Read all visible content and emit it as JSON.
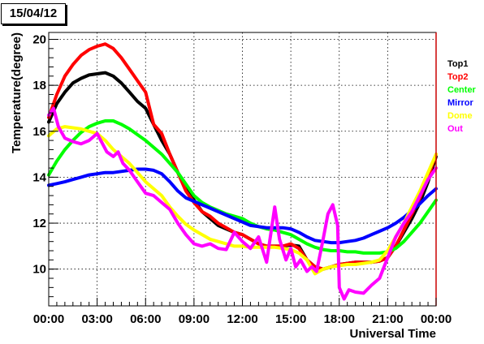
{
  "chart_data": {
    "type": "line",
    "title": "15/04/12",
    "xlabel": "Universal Time",
    "ylabel": "Temperature(degree)",
    "xlim": [
      0,
      24
    ],
    "ylim": [
      8.4,
      20.3
    ],
    "x_ticks": [
      "00:00",
      "03:00",
      "06:00",
      "09:00",
      "12:00",
      "15:00",
      "18:00",
      "21:00",
      "00:00"
    ],
    "y_ticks": [
      10,
      12,
      14,
      16,
      18,
      20
    ],
    "grid": true,
    "legend_position": "right",
    "series": [
      {
        "name": "Top1",
        "color": "#000000",
        "points": [
          [
            0,
            16.4
          ],
          [
            0.5,
            17.2
          ],
          [
            1,
            17.7
          ],
          [
            1.5,
            18.1
          ],
          [
            2,
            18.3
          ],
          [
            2.5,
            18.45
          ],
          [
            3,
            18.5
          ],
          [
            3.5,
            18.55
          ],
          [
            4,
            18.4
          ],
          [
            4.5,
            18.1
          ],
          [
            5,
            17.7
          ],
          [
            5.5,
            17.3
          ],
          [
            6,
            17.0
          ],
          [
            6.5,
            16.3
          ],
          [
            7,
            15.6
          ],
          [
            7.5,
            15.0
          ],
          [
            8,
            14.2
          ],
          [
            8.5,
            13.5
          ],
          [
            9,
            13.0
          ],
          [
            9.5,
            12.5
          ],
          [
            10,
            12.2
          ],
          [
            10.5,
            11.9
          ],
          [
            11,
            11.75
          ],
          [
            11.5,
            11.6
          ],
          [
            12,
            11.5
          ],
          [
            12.5,
            11.3
          ],
          [
            13,
            11.1
          ],
          [
            13.5,
            11.0
          ],
          [
            14,
            11.0
          ],
          [
            14.5,
            11.0
          ],
          [
            15,
            11.05
          ],
          [
            15.5,
            11.0
          ],
          [
            16,
            10.4
          ],
          [
            16.5,
            10.1
          ],
          [
            17,
            10.0
          ],
          [
            17.5,
            10.1
          ],
          [
            18,
            10.2
          ],
          [
            18.5,
            10.25
          ],
          [
            19,
            10.3
          ],
          [
            19.5,
            10.3
          ],
          [
            20,
            10.3
          ],
          [
            20.5,
            10.35
          ],
          [
            21,
            10.5
          ],
          [
            21.5,
            11.0
          ],
          [
            22,
            11.6
          ],
          [
            22.5,
            12.2
          ],
          [
            23,
            12.9
          ],
          [
            23.5,
            13.8
          ],
          [
            24,
            14.9
          ]
        ]
      },
      {
        "name": "Top2",
        "color": "#ff0000",
        "points": [
          [
            0,
            16.6
          ],
          [
            0.5,
            17.6
          ],
          [
            1,
            18.4
          ],
          [
            1.5,
            18.9
          ],
          [
            2,
            19.3
          ],
          [
            2.5,
            19.55
          ],
          [
            3,
            19.7
          ],
          [
            3.5,
            19.8
          ],
          [
            4,
            19.6
          ],
          [
            4.5,
            19.2
          ],
          [
            5,
            18.7
          ],
          [
            5.5,
            18.2
          ],
          [
            6,
            17.7
          ],
          [
            6.5,
            16.3
          ],
          [
            7,
            15.9
          ],
          [
            7.5,
            15.0
          ],
          [
            8,
            14.2
          ],
          [
            8.5,
            13.4
          ],
          [
            9,
            12.9
          ],
          [
            9.5,
            12.5
          ],
          [
            10,
            12.3
          ],
          [
            10.5,
            12.0
          ],
          [
            11,
            11.8
          ],
          [
            11.5,
            11.6
          ],
          [
            12,
            11.5
          ],
          [
            12.5,
            11.3
          ],
          [
            13,
            11.1
          ],
          [
            13.5,
            11.0
          ],
          [
            14,
            11.0
          ],
          [
            14.5,
            11.0
          ],
          [
            15,
            11.1
          ],
          [
            15.5,
            10.9
          ],
          [
            16,
            10.4
          ],
          [
            16.5,
            10.1
          ],
          [
            17,
            10.0
          ],
          [
            17.5,
            10.1
          ],
          [
            18,
            10.2
          ],
          [
            18.5,
            10.25
          ],
          [
            19,
            10.3
          ],
          [
            19.5,
            10.3
          ],
          [
            20,
            10.3
          ],
          [
            20.5,
            10.35
          ],
          [
            21,
            10.5
          ],
          [
            21.5,
            11.0
          ],
          [
            22,
            11.7
          ],
          [
            22.5,
            12.4
          ],
          [
            23,
            13.1
          ],
          [
            23.5,
            14.0
          ],
          [
            24,
            15.0
          ]
        ]
      },
      {
        "name": "Center",
        "color": "#00ff00",
        "points": [
          [
            0,
            14.1
          ],
          [
            0.5,
            14.7
          ],
          [
            1,
            15.2
          ],
          [
            1.5,
            15.6
          ],
          [
            2,
            15.95
          ],
          [
            2.5,
            16.2
          ],
          [
            3,
            16.35
          ],
          [
            3.5,
            16.45
          ],
          [
            4,
            16.45
          ],
          [
            4.5,
            16.3
          ],
          [
            5,
            16.1
          ],
          [
            5.5,
            15.85
          ],
          [
            6,
            15.6
          ],
          [
            6.5,
            15.3
          ],
          [
            7,
            15.0
          ],
          [
            7.5,
            14.6
          ],
          [
            8,
            14.2
          ],
          [
            8.5,
            13.7
          ],
          [
            9,
            13.2
          ],
          [
            9.5,
            12.9
          ],
          [
            10,
            12.7
          ],
          [
            10.5,
            12.55
          ],
          [
            11,
            12.4
          ],
          [
            11.5,
            12.3
          ],
          [
            12,
            12.2
          ],
          [
            12.5,
            12.0
          ],
          [
            13,
            11.85
          ],
          [
            13.5,
            11.75
          ],
          [
            14,
            11.7
          ],
          [
            14.5,
            11.6
          ],
          [
            15,
            11.5
          ],
          [
            15.5,
            11.3
          ],
          [
            16,
            11.1
          ],
          [
            16.5,
            10.95
          ],
          [
            17,
            10.85
          ],
          [
            17.5,
            10.8
          ],
          [
            18,
            10.8
          ],
          [
            18.5,
            10.75
          ],
          [
            19,
            10.75
          ],
          [
            19.5,
            10.7
          ],
          [
            20,
            10.7
          ],
          [
            20.5,
            10.7
          ],
          [
            21,
            10.75
          ],
          [
            21.5,
            10.9
          ],
          [
            22,
            11.2
          ],
          [
            22.5,
            11.6
          ],
          [
            23,
            12.0
          ],
          [
            23.5,
            12.5
          ],
          [
            24,
            13.0
          ]
        ]
      },
      {
        "name": "Mirror",
        "color": "#0000ff",
        "points": [
          [
            0,
            13.65
          ],
          [
            0.5,
            13.72
          ],
          [
            1,
            13.8
          ],
          [
            1.5,
            13.9
          ],
          [
            2,
            14.0
          ],
          [
            2.5,
            14.1
          ],
          [
            3,
            14.15
          ],
          [
            3.5,
            14.2
          ],
          [
            4,
            14.2
          ],
          [
            4.5,
            14.25
          ],
          [
            5,
            14.3
          ],
          [
            5.5,
            14.35
          ],
          [
            6,
            14.35
          ],
          [
            6.5,
            14.3
          ],
          [
            7,
            14.15
          ],
          [
            7.5,
            13.8
          ],
          [
            8,
            13.4
          ],
          [
            8.5,
            13.1
          ],
          [
            9,
            12.95
          ],
          [
            9.5,
            12.8
          ],
          [
            10,
            12.65
          ],
          [
            10.5,
            12.5
          ],
          [
            11,
            12.35
          ],
          [
            11.5,
            12.2
          ],
          [
            12,
            12.05
          ],
          [
            12.5,
            11.9
          ],
          [
            13,
            11.85
          ],
          [
            13.5,
            11.8
          ],
          [
            14,
            11.8
          ],
          [
            14.5,
            11.8
          ],
          [
            15,
            11.75
          ],
          [
            15.5,
            11.6
          ],
          [
            16,
            11.4
          ],
          [
            16.5,
            11.25
          ],
          [
            17,
            11.2
          ],
          [
            17.5,
            11.15
          ],
          [
            18,
            11.15
          ],
          [
            18.5,
            11.2
          ],
          [
            19,
            11.25
          ],
          [
            19.5,
            11.35
          ],
          [
            20,
            11.5
          ],
          [
            20.5,
            11.65
          ],
          [
            21,
            11.8
          ],
          [
            21.5,
            12.0
          ],
          [
            22,
            12.25
          ],
          [
            22.5,
            12.55
          ],
          [
            23,
            12.85
          ],
          [
            23.5,
            13.2
          ],
          [
            24,
            13.5
          ]
        ]
      },
      {
        "name": "Dome",
        "color": "#ffff00",
        "points": [
          [
            0,
            15.8
          ],
          [
            0.5,
            16.1
          ],
          [
            1,
            16.2
          ],
          [
            1.5,
            16.15
          ],
          [
            2,
            16.1
          ],
          [
            2.5,
            16.0
          ],
          [
            3,
            15.9
          ],
          [
            3.5,
            15.6
          ],
          [
            4,
            15.2
          ],
          [
            4.5,
            14.9
          ],
          [
            5,
            14.6
          ],
          [
            5.5,
            14.2
          ],
          [
            6,
            13.8
          ],
          [
            6.5,
            13.5
          ],
          [
            7,
            13.2
          ],
          [
            7.5,
            12.7
          ],
          [
            8,
            12.3
          ],
          [
            8.5,
            11.95
          ],
          [
            9,
            11.7
          ],
          [
            9.5,
            11.5
          ],
          [
            10,
            11.3
          ],
          [
            10.5,
            11.2
          ],
          [
            11,
            11.1
          ],
          [
            11.5,
            11.0
          ],
          [
            12,
            11.0
          ],
          [
            12.5,
            10.95
          ],
          [
            13,
            10.95
          ],
          [
            13.5,
            10.95
          ],
          [
            14,
            10.95
          ],
          [
            14.5,
            10.9
          ],
          [
            15,
            10.85
          ],
          [
            15.5,
            10.7
          ],
          [
            16,
            10.4
          ],
          [
            16.5,
            9.8
          ],
          [
            17,
            10.0
          ],
          [
            17.5,
            10.1
          ],
          [
            18,
            10.15
          ],
          [
            18.5,
            10.2
          ],
          [
            19,
            10.2
          ],
          [
            19.5,
            10.25
          ],
          [
            20,
            10.3
          ],
          [
            20.5,
            10.4
          ],
          [
            21,
            10.8
          ],
          [
            21.5,
            11.4
          ],
          [
            22,
            12.0
          ],
          [
            22.5,
            12.7
          ],
          [
            23,
            13.4
          ],
          [
            23.5,
            14.2
          ],
          [
            24,
            15.0
          ]
        ]
      },
      {
        "name": "Out",
        "color": "#ff00ff",
        "points": [
          [
            0,
            16.7
          ],
          [
            0.3,
            17.0
          ],
          [
            0.6,
            16.2
          ],
          [
            1,
            15.7
          ],
          [
            1.5,
            15.55
          ],
          [
            2,
            15.45
          ],
          [
            2.5,
            15.6
          ],
          [
            3,
            15.9
          ],
          [
            3.3,
            15.5
          ],
          [
            3.6,
            15.1
          ],
          [
            4,
            14.9
          ],
          [
            4.3,
            15.1
          ],
          [
            4.6,
            14.6
          ],
          [
            5,
            14.3
          ],
          [
            5.5,
            13.8
          ],
          [
            6,
            13.3
          ],
          [
            6.5,
            13.2
          ],
          [
            7,
            12.9
          ],
          [
            7.5,
            12.6
          ],
          [
            8,
            12.0
          ],
          [
            8.5,
            11.5
          ],
          [
            9,
            11.1
          ],
          [
            9.5,
            11.0
          ],
          [
            10,
            11.1
          ],
          [
            10.5,
            10.9
          ],
          [
            11,
            10.85
          ],
          [
            11.5,
            11.6
          ],
          [
            12,
            11.2
          ],
          [
            12.5,
            10.9
          ],
          [
            13,
            11.4
          ],
          [
            13.5,
            10.3
          ],
          [
            14,
            12.7
          ],
          [
            14.3,
            11.3
          ],
          [
            14.7,
            10.4
          ],
          [
            15,
            10.9
          ],
          [
            15.3,
            10.1
          ],
          [
            15.6,
            10.4
          ],
          [
            16,
            9.9
          ],
          [
            16.3,
            10.1
          ],
          [
            16.6,
            9.9
          ],
          [
            17,
            11.3
          ],
          [
            17.3,
            12.4
          ],
          [
            17.6,
            12.8
          ],
          [
            17.9,
            11.9
          ],
          [
            18,
            9.2
          ],
          [
            18.3,
            8.7
          ],
          [
            18.6,
            9.1
          ],
          [
            19,
            9.0
          ],
          [
            19.5,
            8.95
          ],
          [
            20,
            9.3
          ],
          [
            20.5,
            9.6
          ],
          [
            21,
            10.5
          ],
          [
            21.5,
            11.4
          ],
          [
            22,
            12.0
          ],
          [
            22.5,
            12.5
          ],
          [
            23,
            13.2
          ],
          [
            23.5,
            13.9
          ],
          [
            24,
            14.4
          ]
        ]
      }
    ]
  }
}
